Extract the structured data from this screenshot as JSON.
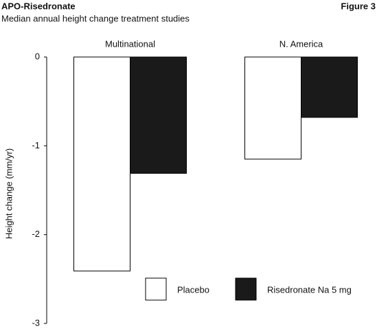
{
  "chart_data": {
    "type": "bar",
    "title": "APO-Risedronate",
    "figure_label": "Figure 3",
    "subtitle": "Median annual height change treatment studies",
    "y_label": "Height change (mm/yr)",
    "categories": [
      "Multinational",
      "N. America"
    ],
    "series": [
      {
        "name": "Placebo",
        "color": "#ffffff",
        "values": [
          -2.41,
          -1.15
        ]
      },
      {
        "name": "Risedronate Na 5 mg",
        "color": "#1a1a1a",
        "values": [
          -1.31,
          -0.68
        ]
      }
    ],
    "ylim": [
      -3,
      0
    ],
    "yticks": [
      0,
      -1,
      -2,
      -3
    ],
    "grid": false
  }
}
